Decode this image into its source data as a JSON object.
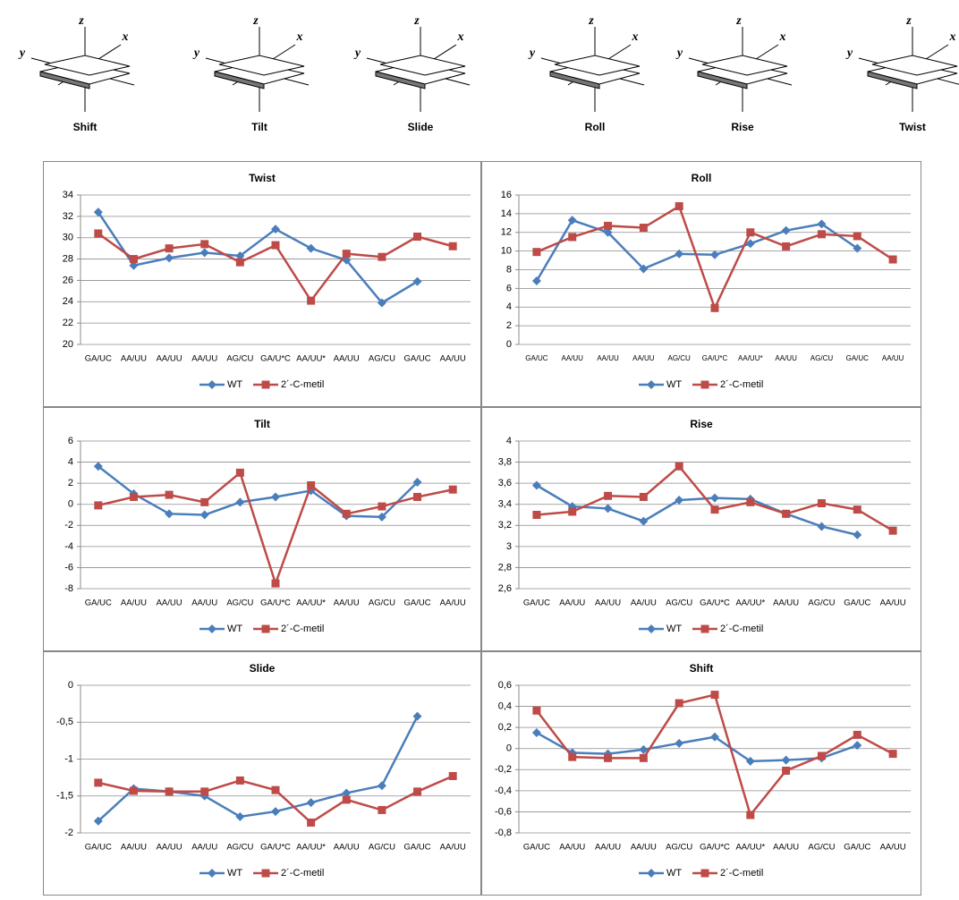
{
  "diagrams": [
    {
      "label": "Shift"
    },
    {
      "label": "Tilt"
    },
    {
      "label": "Slide"
    },
    {
      "label": "Roll"
    },
    {
      "label": "Rise"
    },
    {
      "label": "Twist"
    }
  ],
  "diagram_axes": [
    "x",
    "y",
    "z"
  ],
  "chart_data": [
    {
      "type": "line",
      "title": "Twist",
      "categories": [
        "GA/UC",
        "AA/UU",
        "AA/UU",
        "AA/UU",
        "AG/CU",
        "GA/U*C",
        "AA/UU*",
        "AA/UU",
        "AG/CU",
        "GA/UC",
        "AA/UU"
      ],
      "series": [
        {
          "name": "WT",
          "color": "#4a7ebb",
          "values": [
            32.4,
            27.4,
            28.1,
            28.6,
            28.3,
            30.8,
            29.0,
            27.9,
            23.9,
            25.9,
            null
          ]
        },
        {
          "name": "2´-C-metil",
          "color": "#be4b48",
          "values": [
            30.4,
            28.0,
            29.0,
            29.4,
            27.7,
            29.3,
            24.1,
            28.5,
            28.2,
            30.1,
            29.2
          ]
        }
      ],
      "ylim": [
        20,
        34
      ],
      "yticks": [
        20,
        22,
        24,
        26,
        28,
        30,
        32,
        34
      ],
      "grid": true
    },
    {
      "type": "line",
      "title": "Roll",
      "categories": [
        "GA/UC",
        "AA/UU",
        "AA/UU",
        "AA/UU",
        "AG/CU",
        "GA/U*C",
        "AA/UU*",
        "AA/UU",
        "AG/CU",
        "GA/UC",
        "AA/UU"
      ],
      "series": [
        {
          "name": "WT",
          "color": "#4a7ebb",
          "values": [
            6.8,
            13.3,
            12.0,
            8.1,
            9.7,
            9.6,
            10.8,
            12.2,
            12.9,
            10.3,
            null
          ]
        },
        {
          "name": "2´-C-metil",
          "color": "#be4b48",
          "values": [
            9.9,
            11.5,
            12.7,
            12.5,
            14.8,
            3.9,
            12.0,
            10.5,
            11.8,
            11.6,
            9.1
          ]
        }
      ],
      "ylim": [
        0,
        16
      ],
      "yticks": [
        0,
        2,
        4,
        6,
        8,
        10,
        12,
        14,
        16
      ],
      "grid": true
    },
    {
      "type": "line",
      "title": "Tilt",
      "categories": [
        "GA/UC",
        "AA/UU",
        "AA/UU",
        "AA/UU",
        "AG/CU",
        "GA/U*C",
        "AA/UU*",
        "AA/UU",
        "AG/CU",
        "GA/UC",
        "AA/UU"
      ],
      "series": [
        {
          "name": "WT",
          "color": "#4a7ebb",
          "values": [
            3.6,
            1.0,
            -0.9,
            -1.0,
            0.2,
            0.7,
            1.3,
            -1.1,
            -1.2,
            2.1,
            null
          ]
        },
        {
          "name": "2´-C-metil",
          "color": "#be4b48",
          "values": [
            -0.1,
            0.7,
            0.9,
            0.2,
            3.0,
            -7.5,
            1.8,
            -0.9,
            -0.2,
            0.7,
            1.4
          ]
        }
      ],
      "ylim": [
        -8,
        6
      ],
      "yticks": [
        -8,
        -6,
        -4,
        -2,
        0,
        2,
        4,
        6
      ],
      "grid": true
    },
    {
      "type": "line",
      "title": "Rise",
      "categories": [
        "GA/UC",
        "AA/UU",
        "AA/UU",
        "AA/UU",
        "AG/CU",
        "GA/U*C",
        "AA/UU*",
        "AA/UU",
        "AG/CU",
        "GA/UC",
        "AA/UU"
      ],
      "series": [
        {
          "name": "WT",
          "color": "#4a7ebb",
          "values": [
            3.58,
            3.38,
            3.36,
            3.24,
            3.44,
            3.46,
            3.45,
            3.31,
            3.19,
            3.11,
            null
          ]
        },
        {
          "name": "2´-C-metil",
          "color": "#be4b48",
          "values": [
            3.3,
            3.33,
            3.48,
            3.47,
            3.76,
            3.35,
            3.42,
            3.31,
            3.41,
            3.35,
            3.15
          ]
        }
      ],
      "ylim": [
        2.6,
        4
      ],
      "yticks": [
        {
          "value": 2.6,
          "label": "2,6"
        },
        {
          "value": 2.8,
          "label": "2,8"
        },
        3,
        {
          "value": 3.2,
          "label": "3,2"
        },
        {
          "value": 3.4,
          "label": "3,4"
        },
        {
          "value": 3.6,
          "label": "3,6"
        },
        {
          "value": 3.8,
          "label": "3,8"
        },
        4
      ],
      "grid": true
    },
    {
      "type": "line",
      "title": "Slide",
      "categories": [
        "GA/UC",
        "AA/UU",
        "AA/UU",
        "AA/UU",
        "AG/CU",
        "GA/U*C",
        "AA/UU*",
        "AA/UU",
        "AG/CU",
        "GA/UC",
        "AA/UU"
      ],
      "series": [
        {
          "name": "WT",
          "color": "#4a7ebb",
          "values": [
            -1.84,
            -1.4,
            -1.44,
            -1.5,
            -1.78,
            -1.71,
            -1.59,
            -1.46,
            -1.36,
            -0.42,
            null
          ]
        },
        {
          "name": "2´-C-metil",
          "color": "#be4b48",
          "values": [
            -1.32,
            -1.43,
            -1.44,
            -1.44,
            -1.29,
            -1.42,
            -1.86,
            -1.55,
            -1.69,
            -1.44,
            -1.23
          ]
        }
      ],
      "ylim": [
        -2,
        0
      ],
      "yticks": [
        -2,
        {
          "value": -1.5,
          "label": "-1,5"
        },
        -1,
        {
          "value": -0.5,
          "label": "-0,5"
        },
        0
      ],
      "grid": true
    },
    {
      "type": "line",
      "title": "Shift",
      "categories": [
        "GA/UC",
        "AA/UU",
        "AA/UU",
        "AA/UU",
        "AG/CU",
        "GA/U*C",
        "AA/UU*",
        "AA/UU",
        "AG/CU",
        "GA/UC",
        "AA/UU"
      ],
      "series": [
        {
          "name": "WT",
          "color": "#4a7ebb",
          "values": [
            0.15,
            -0.04,
            -0.05,
            -0.01,
            0.05,
            0.11,
            -0.12,
            -0.11,
            -0.09,
            0.03,
            null
          ]
        },
        {
          "name": "2´-C-metil",
          "color": "#be4b48",
          "values": [
            0.36,
            -0.08,
            -0.09,
            -0.09,
            0.43,
            0.51,
            -0.63,
            -0.21,
            -0.07,
            0.13,
            -0.05
          ]
        }
      ],
      "ylim": [
        -0.8,
        0.6
      ],
      "yticks": [
        {
          "value": -0.8,
          "label": "-0,8"
        },
        {
          "value": -0.6,
          "label": "-0,6"
        },
        {
          "value": -0.4,
          "label": "-0,4"
        },
        {
          "value": -0.2,
          "label": "-0,2"
        },
        0,
        {
          "value": 0.2,
          "label": "0,2"
        },
        {
          "value": 0.4,
          "label": "0,4"
        },
        {
          "value": 0.6,
          "label": "0,6"
        }
      ],
      "grid": true
    }
  ]
}
